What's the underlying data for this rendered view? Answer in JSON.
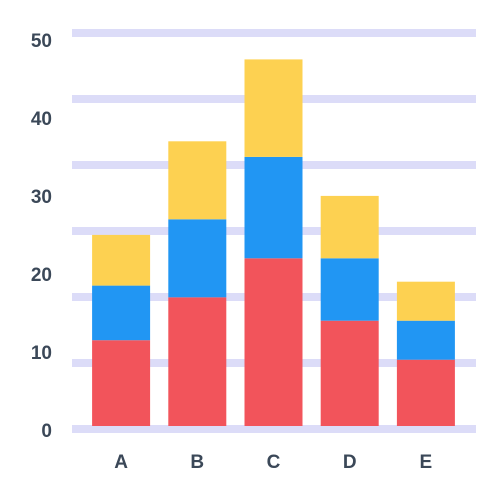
{
  "chart_data": {
    "type": "stacked_bar",
    "categories": [
      "A",
      "B",
      "C",
      "D",
      "E"
    ],
    "series": [
      {
        "color": "#f2545b",
        "values": [
          11,
          16.5,
          21.5,
          13.5,
          8.5
        ]
      },
      {
        "color": "#2196f3",
        "values": [
          7,
          10,
          13,
          8,
          5
        ]
      },
      {
        "color": "#fdd151",
        "values": [
          6.5,
          10,
          12.5,
          8,
          5
        ]
      }
    ],
    "ylim": [
      0,
      50
    ],
    "yticks": [
      0,
      10,
      20,
      30,
      40,
      50
    ]
  }
}
